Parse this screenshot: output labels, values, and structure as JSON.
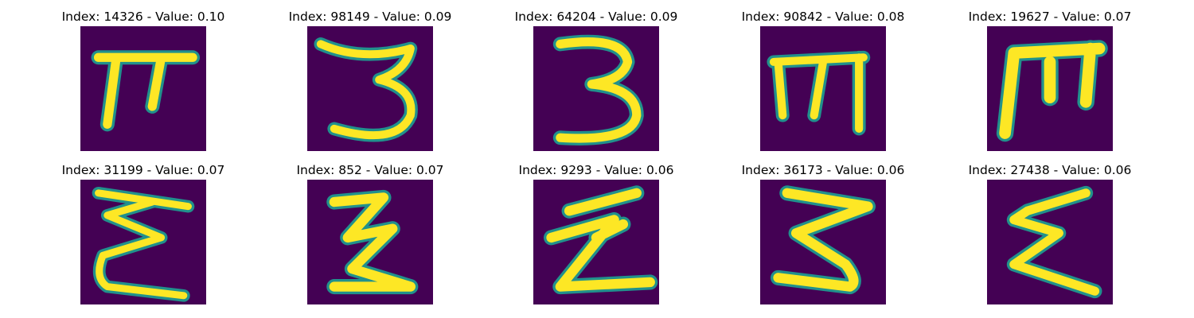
{
  "figure": {
    "colormap": "viridis",
    "background_color": "#440154",
    "stroke_colors": {
      "core": "#fde725",
      "edge": "#21918c",
      "mid": "#5ec962"
    },
    "panels": [
      {
        "index": "14326",
        "value": "0.10",
        "title": "Index: 14326 - Value: 0.10",
        "glyph": "pi-shape"
      },
      {
        "index": "98149",
        "value": "0.09",
        "title": "Index: 98149 - Value: 0.09",
        "glyph": "three-shape"
      },
      {
        "index": "64204",
        "value": "0.09",
        "title": "Index: 64204 - Value: 0.09",
        "glyph": "three-shape"
      },
      {
        "index": "90842",
        "value": "0.08",
        "title": "Index: 90842 - Value: 0.08",
        "glyph": "m-shape"
      },
      {
        "index": "19627",
        "value": "0.07",
        "title": "Index: 19627 - Value: 0.07",
        "glyph": "m-shape"
      },
      {
        "index": "31199",
        "value": "0.07",
        "title": "Index: 31199 - Value: 0.07",
        "glyph": "sigma-shape"
      },
      {
        "index": "852",
        "value": "0.07",
        "title": "Index: 852 - Value: 0.07",
        "glyph": "z-shape"
      },
      {
        "index": "9293",
        "value": "0.06",
        "title": "Index: 9293 - Value: 0.06",
        "glyph": "z-shape"
      },
      {
        "index": "36173",
        "value": "0.06",
        "title": "Index: 36173 - Value: 0.06",
        "glyph": "three-shape"
      },
      {
        "index": "27438",
        "value": "0.06",
        "title": "Index: 27438 - Value: 0.06",
        "glyph": "sigma-shape"
      }
    ]
  }
}
